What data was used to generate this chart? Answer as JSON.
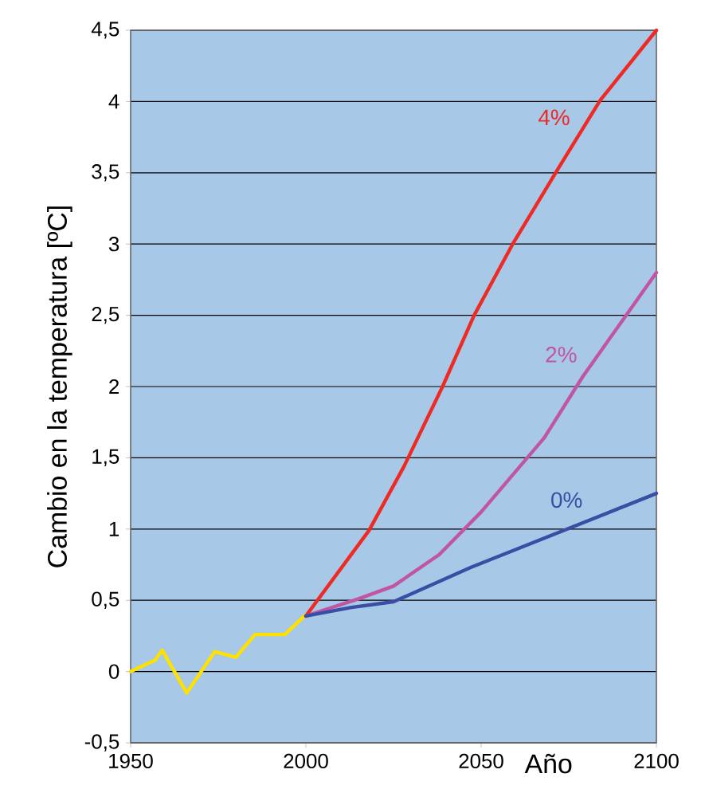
{
  "chart_data": {
    "type": "line",
    "xlabel": "Año",
    "ylabel": "Cambio en la temperatura [ºC]",
    "xlim": [
      1950,
      2100
    ],
    "ylim": [
      -0.5,
      4.5
    ],
    "xticks": [
      1950,
      2000,
      2050,
      2100
    ],
    "yticks": [
      {
        "value": -0.5,
        "label": "-0,5"
      },
      {
        "value": 0,
        "label": "0"
      },
      {
        "value": 0.5,
        "label": "0,5"
      },
      {
        "value": 1,
        "label": "1"
      },
      {
        "value": 1.5,
        "label": "1,5"
      },
      {
        "value": 2,
        "label": "2"
      },
      {
        "value": 2.5,
        "label": "2,5"
      },
      {
        "value": 3,
        "label": "3"
      },
      {
        "value": 3.5,
        "label": "3,5"
      },
      {
        "value": 4,
        "label": "4"
      },
      {
        "value": 4.5,
        "label": "4,5"
      }
    ],
    "grid": "y",
    "legend": false,
    "marker": "none",
    "line_style": "solid",
    "series": [
      {
        "color": "#ffe100",
        "x": [
          1950,
          1957,
          1959,
          1966,
          1974,
          1980,
          1985.5,
          1994,
          2000
        ],
        "values": [
          0.0,
          0.08,
          0.15,
          -0.15,
          0.14,
          0.1,
          0.26,
          0.26,
          0.4
        ]
      },
      {
        "name": "4%",
        "color": "#ee2a24",
        "x": [
          2000,
          2018,
          2028,
          2039,
          2048,
          2059,
          2072,
          2084,
          2100
        ],
        "values": [
          0.39,
          0.99,
          1.44,
          2.0,
          2.5,
          3.0,
          3.53,
          4.01,
          4.5
        ]
      },
      {
        "name": "2%",
        "color": "#c155a5",
        "x": [
          2000,
          2015,
          2025,
          2038,
          2050,
          2068,
          2079,
          2100
        ],
        "values": [
          0.39,
          0.51,
          0.6,
          0.82,
          1.12,
          1.64,
          2.07,
          2.8
        ]
      },
      {
        "name": "0%",
        "color": "#3a4fa3",
        "x": [
          2000,
          2013,
          2025,
          2047,
          2100
        ],
        "values": [
          0.39,
          0.45,
          0.49,
          0.73,
          1.25
        ]
      }
    ]
  }
}
